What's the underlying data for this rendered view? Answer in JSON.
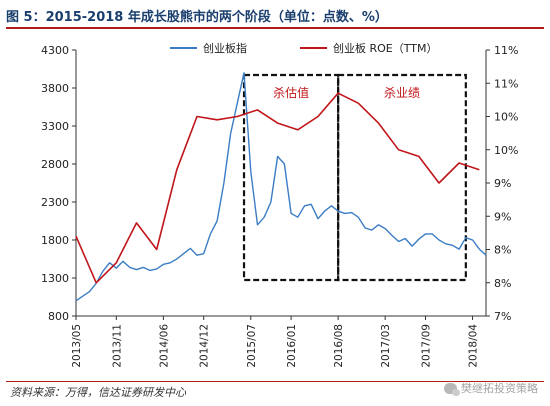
{
  "figure": {
    "title": "图 5：2015-2018 年成长股熊市的两个阶段（单位：点数、%）",
    "source": "资料来源：万得，信达证券研发中心",
    "watermark": "樊继拓投资策略"
  },
  "chart_data": {
    "type": "line",
    "x_ticks": [
      "2013/05",
      "2013/11",
      "2014/06",
      "2014/12",
      "2015/07",
      "2016/01",
      "2016/08",
      "2017/03",
      "2017/09",
      "2018/04"
    ],
    "left_axis": {
      "ticks": [
        "4300",
        "3800",
        "3300",
        "2800",
        "2300",
        "1800",
        "1300",
        "800"
      ],
      "ylim": [
        800,
        4300
      ]
    },
    "right_axis": {
      "ticks": [
        "11%",
        "11%",
        "10%",
        "10%",
        "9%",
        "9%",
        "8%",
        "8%",
        "7%"
      ],
      "ylim": [
        7.0,
        11.0
      ]
    },
    "series": [
      {
        "name": "创业板指",
        "axis": "left",
        "color": "#3b7dc4",
        "points": [
          [
            "2013/05",
            1000
          ],
          [
            "2013/06",
            1060
          ],
          [
            "2013/07",
            1120
          ],
          [
            "2013/08",
            1230
          ],
          [
            "2013/09",
            1390
          ],
          [
            "2013/10",
            1500
          ],
          [
            "2013/11",
            1430
          ],
          [
            "2013/12",
            1520
          ],
          [
            "2014/01",
            1440
          ],
          [
            "2014/02",
            1410
          ],
          [
            "2014/03",
            1440
          ],
          [
            "2014/04",
            1400
          ],
          [
            "2014/05",
            1420
          ],
          [
            "2014/06",
            1480
          ],
          [
            "2014/07",
            1500
          ],
          [
            "2014/08",
            1550
          ],
          [
            "2014/09",
            1620
          ],
          [
            "2014/10",
            1690
          ],
          [
            "2014/11",
            1600
          ],
          [
            "2014/12",
            1620
          ],
          [
            "2015/01",
            1880
          ],
          [
            "2015/02",
            2050
          ],
          [
            "2015/03",
            2550
          ],
          [
            "2015/04",
            3200
          ],
          [
            "2015/05",
            3600
          ],
          [
            "2015/06",
            4000
          ],
          [
            "2015/07",
            2700
          ],
          [
            "2015/08",
            2000
          ],
          [
            "2015/09",
            2100
          ],
          [
            "2015/10",
            2300
          ],
          [
            "2015/11",
            2900
          ],
          [
            "2015/12",
            2800
          ],
          [
            "2016/01",
            2150
          ],
          [
            "2016/02",
            2100
          ],
          [
            "2016/03",
            2250
          ],
          [
            "2016/04",
            2270
          ],
          [
            "2016/05",
            2080
          ],
          [
            "2016/06",
            2180
          ],
          [
            "2016/07",
            2250
          ],
          [
            "2016/08",
            2180
          ],
          [
            "2016/09",
            2150
          ],
          [
            "2016/10",
            2160
          ],
          [
            "2016/11",
            2100
          ],
          [
            "2016/12",
            1960
          ],
          [
            "2017/01",
            1930
          ],
          [
            "2017/02",
            2000
          ],
          [
            "2017/03",
            1950
          ],
          [
            "2017/04",
            1860
          ],
          [
            "2017/05",
            1780
          ],
          [
            "2017/06",
            1820
          ],
          [
            "2017/07",
            1720
          ],
          [
            "2017/08",
            1810
          ],
          [
            "2017/09",
            1880
          ],
          [
            "2017/10",
            1880
          ],
          [
            "2017/11",
            1800
          ],
          [
            "2017/12",
            1750
          ],
          [
            "2018/01",
            1730
          ],
          [
            "2018/02",
            1680
          ],
          [
            "2018/03",
            1830
          ],
          [
            "2018/04",
            1800
          ],
          [
            "2018/05",
            1680
          ],
          [
            "2018/06",
            1600
          ]
        ]
      },
      {
        "name": "创业板 ROE（TTM）",
        "axis": "right",
        "color": "#c0161b",
        "points": [
          [
            "2013/05",
            8.2
          ],
          [
            "2013/08",
            7.5
          ],
          [
            "2013/11",
            7.8
          ],
          [
            "2014/02",
            8.4
          ],
          [
            "2014/05",
            8.0
          ],
          [
            "2014/08",
            9.2
          ],
          [
            "2014/11",
            10.0
          ],
          [
            "2015/02",
            9.95
          ],
          [
            "2015/05",
            10.0
          ],
          [
            "2015/08",
            10.1
          ],
          [
            "2015/11",
            9.9
          ],
          [
            "2016/02",
            9.8
          ],
          [
            "2016/05",
            10.0
          ],
          [
            "2016/08",
            10.35
          ],
          [
            "2016/11",
            10.2
          ],
          [
            "2017/02",
            9.9
          ],
          [
            "2017/05",
            9.5
          ],
          [
            "2017/08",
            9.4
          ],
          [
            "2017/11",
            9.0
          ],
          [
            "2018/02",
            9.3
          ],
          [
            "2018/05",
            9.2
          ]
        ]
      }
    ],
    "annotations": [
      {
        "label": "杀估值",
        "from": "2015/06",
        "to": "2016/08"
      },
      {
        "label": "杀业绩",
        "from": "2016/08",
        "to": "2018/03"
      }
    ],
    "legend": {
      "placement": "top-center"
    },
    "grid": false
  }
}
